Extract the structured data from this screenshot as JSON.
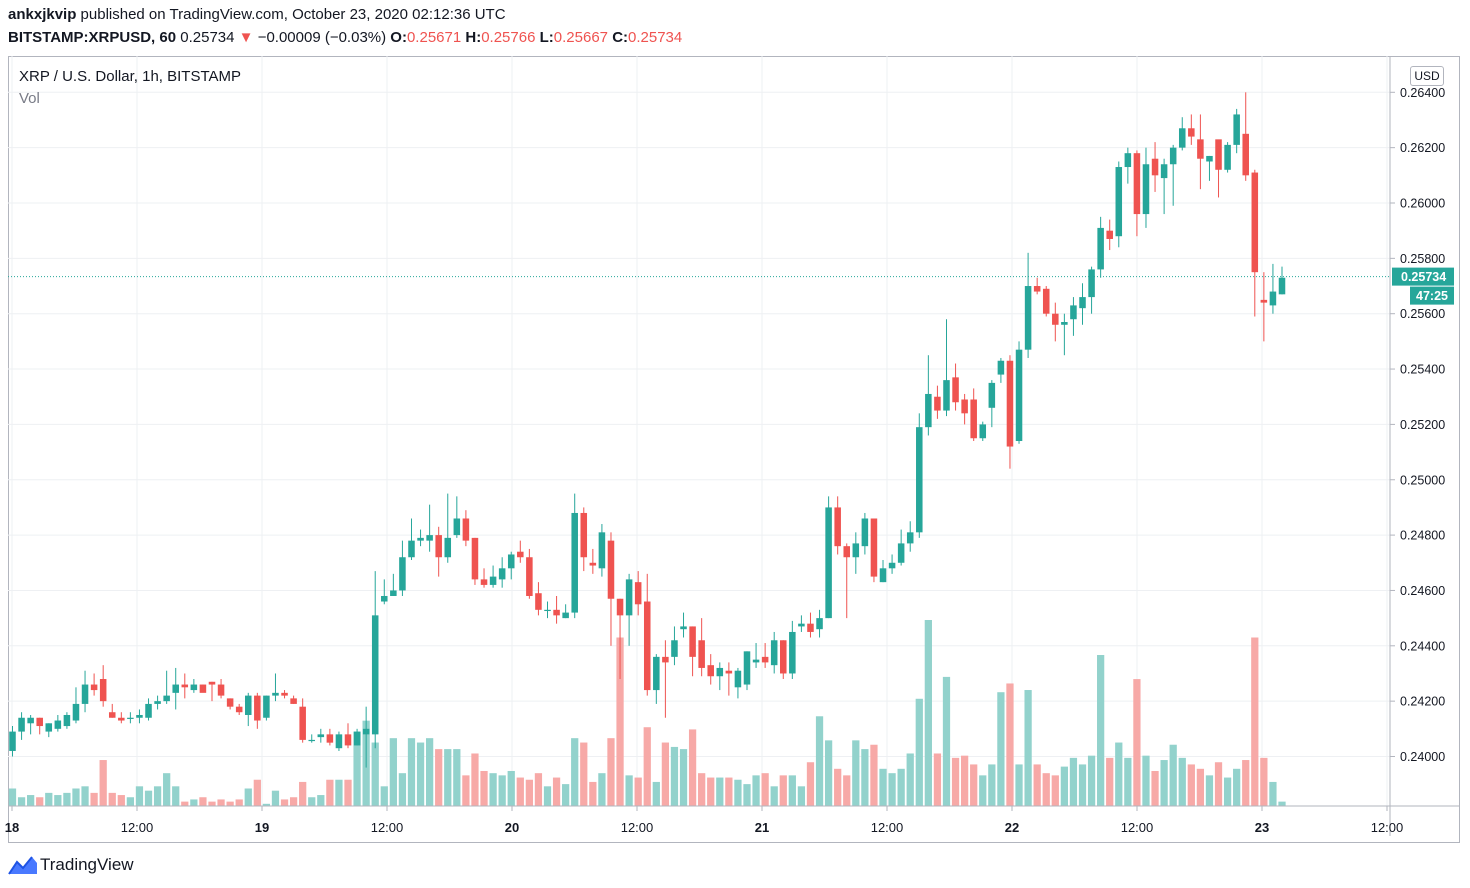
{
  "header": {
    "publisher": "ankxjkvip",
    "published_text": "published on TradingView.com, October 23, 2020 02:12:36 UTC",
    "symbol": "BITSTAMP:XRPUSD, 60",
    "price": "0.25734",
    "change": "−0.00009 (−0.03%)",
    "o_label": "O:",
    "o_value": "0.25671",
    "h_label": "H:",
    "h_value": "0.25766",
    "l_label": "L:",
    "l_value": "0.25667",
    "c_label": "C:",
    "c_value": "0.25734"
  },
  "legend": {
    "series_title": "XRP / U.S. Dollar, 1h, BITSTAMP",
    "volume_label": "Vol"
  },
  "currency_button": "USD",
  "last_price_label": "0.25734",
  "countdown_label": "47:25",
  "footer": {
    "brand": "TradingView"
  },
  "colors": {
    "up": "#26a69a",
    "down": "#ef5350",
    "vol_up": "#92d2cc",
    "vol_down": "#f7a9a7",
    "grid": "#eef0f3"
  },
  "chart_data": {
    "type": "candlestick",
    "title": "XRP / U.S. Dollar, 1h, BITSTAMP",
    "ylim": [
      0.2383,
      0.2646
    ],
    "y_ticks": [
      "0.24000",
      "0.24200",
      "0.24400",
      "0.24600",
      "0.24800",
      "0.25000",
      "0.25200",
      "0.25400",
      "0.25600",
      "0.25800",
      "0.26000",
      "0.26200",
      "0.26400"
    ],
    "x_ticks": [
      "18",
      "12:00",
      "19",
      "12:00",
      "20",
      "12:00",
      "21",
      "12:00",
      "22",
      "12:00",
      "23",
      "12:00"
    ],
    "last_price": 0.25734,
    "candles": [
      {
        "o": 0.2402,
        "h": 0.2411,
        "l": 0.24,
        "c": 0.2409,
        "v": 0.8
      },
      {
        "o": 0.2409,
        "h": 0.2416,
        "l": 0.2406,
        "c": 0.2414,
        "v": 0.4
      },
      {
        "o": 0.2412,
        "h": 0.2415,
        "l": 0.2408,
        "c": 0.2414,
        "v": 0.5
      },
      {
        "o": 0.2414,
        "h": 0.2414,
        "l": 0.2408,
        "c": 0.2411,
        "v": 0.4
      },
      {
        "o": 0.2409,
        "h": 0.2412,
        "l": 0.2407,
        "c": 0.2412,
        "v": 0.6
      },
      {
        "o": 0.241,
        "h": 0.2415,
        "l": 0.2409,
        "c": 0.2413,
        "v": 0.5
      },
      {
        "o": 0.2411,
        "h": 0.2416,
        "l": 0.241,
        "c": 0.2415,
        "v": 0.6
      },
      {
        "o": 0.2413,
        "h": 0.2425,
        "l": 0.2412,
        "c": 0.2419,
        "v": 0.8
      },
      {
        "o": 0.2419,
        "h": 0.2431,
        "l": 0.2416,
        "c": 0.2426,
        "v": 0.9
      },
      {
        "o": 0.2426,
        "h": 0.243,
        "l": 0.2422,
        "c": 0.2424,
        "v": 0.6
      },
      {
        "o": 0.2428,
        "h": 0.2433,
        "l": 0.2418,
        "c": 0.242,
        "v": 2.1
      },
      {
        "o": 0.2416,
        "h": 0.2419,
        "l": 0.2414,
        "c": 0.2414,
        "v": 0.6
      },
      {
        "o": 0.2414,
        "h": 0.2416,
        "l": 0.2412,
        "c": 0.2413,
        "v": 0.5
      },
      {
        "o": 0.2414,
        "h": 0.2416,
        "l": 0.2412,
        "c": 0.2414,
        "v": 0.4
      },
      {
        "o": 0.2414,
        "h": 0.2417,
        "l": 0.2412,
        "c": 0.2415,
        "v": 0.9
      },
      {
        "o": 0.2414,
        "h": 0.2421,
        "l": 0.2413,
        "c": 0.2419,
        "v": 0.7
      },
      {
        "o": 0.2419,
        "h": 0.2422,
        "l": 0.2417,
        "c": 0.242,
        "v": 0.9
      },
      {
        "o": 0.242,
        "h": 0.2431,
        "l": 0.2419,
        "c": 0.2422,
        "v": 1.5
      },
      {
        "o": 0.2423,
        "h": 0.2432,
        "l": 0.2417,
        "c": 0.2426,
        "v": 0.9
      },
      {
        "o": 0.2426,
        "h": 0.243,
        "l": 0.2421,
        "c": 0.2425,
        "v": 0.2
      },
      {
        "o": 0.2424,
        "h": 0.2428,
        "l": 0.2423,
        "c": 0.2426,
        "v": 0.3
      },
      {
        "o": 0.2426,
        "h": 0.2426,
        "l": 0.2424,
        "c": 0.2423,
        "v": 0.4
      },
      {
        "o": 0.2427,
        "h": 0.2427,
        "l": 0.242,
        "c": 0.2426,
        "v": 0.2
      },
      {
        "o": 0.2426,
        "h": 0.2428,
        "l": 0.2421,
        "c": 0.2422,
        "v": 0.3
      },
      {
        "o": 0.2421,
        "h": 0.2421,
        "l": 0.2417,
        "c": 0.2418,
        "v": 0.2
      },
      {
        "o": 0.2418,
        "h": 0.2419,
        "l": 0.2415,
        "c": 0.2416,
        "v": 0.3
      },
      {
        "o": 0.2415,
        "h": 0.2423,
        "l": 0.2411,
        "c": 0.2422,
        "v": 0.8
      },
      {
        "o": 0.2422,
        "h": 0.2423,
        "l": 0.241,
        "c": 0.2413,
        "v": 1.2
      },
      {
        "o": 0.2414,
        "h": 0.2422,
        "l": 0.2413,
        "c": 0.2422,
        "v": 0.1
      },
      {
        "o": 0.2422,
        "h": 0.243,
        "l": 0.242,
        "c": 0.2423,
        "v": 0.7
      },
      {
        "o": 0.2423,
        "h": 0.2424,
        "l": 0.2421,
        "c": 0.2422,
        "v": 0.3
      },
      {
        "o": 0.2421,
        "h": 0.2422,
        "l": 0.2419,
        "c": 0.2419,
        "v": 0.4
      },
      {
        "o": 0.2418,
        "h": 0.2421,
        "l": 0.2405,
        "c": 0.2406,
        "v": 1.1
      },
      {
        "o": 0.2406,
        "h": 0.2408,
        "l": 0.2405,
        "c": 0.2406,
        "v": 0.4
      },
      {
        "o": 0.2407,
        "h": 0.241,
        "l": 0.2405,
        "c": 0.2408,
        "v": 0.5
      },
      {
        "o": 0.2408,
        "h": 0.241,
        "l": 0.2404,
        "c": 0.2405,
        "v": 1.2
      },
      {
        "o": 0.2403,
        "h": 0.2409,
        "l": 0.2402,
        "c": 0.2408,
        "v": 1.2
      },
      {
        "o": 0.2408,
        "h": 0.2412,
        "l": 0.2403,
        "c": 0.2404,
        "v": 1.2
      },
      {
        "o": 0.2404,
        "h": 0.241,
        "l": 0.2404,
        "c": 0.2409,
        "v": 3.4
      },
      {
        "o": 0.2408,
        "h": 0.2418,
        "l": 0.2396,
        "c": 0.241,
        "v": 3.9
      },
      {
        "o": 0.2408,
        "h": 0.2467,
        "l": 0.2403,
        "c": 0.2451,
        "v": 2.9
      },
      {
        "o": 0.2456,
        "h": 0.2464,
        "l": 0.2455,
        "c": 0.2458,
        "v": 0.9
      },
      {
        "o": 0.2458,
        "h": 0.2466,
        "l": 0.2458,
        "c": 0.246,
        "v": 3.1
      },
      {
        "o": 0.246,
        "h": 0.2478,
        "l": 0.2458,
        "c": 0.2472,
        "v": 1.5
      },
      {
        "o": 0.2472,
        "h": 0.2486,
        "l": 0.2471,
        "c": 0.2478,
        "v": 3.1
      },
      {
        "o": 0.2478,
        "h": 0.2482,
        "l": 0.2476,
        "c": 0.2479,
        "v": 2.9
      },
      {
        "o": 0.2478,
        "h": 0.2491,
        "l": 0.2474,
        "c": 0.248,
        "v": 3.1
      },
      {
        "o": 0.248,
        "h": 0.2483,
        "l": 0.2465,
        "c": 0.2472,
        "v": 2.6
      },
      {
        "o": 0.2472,
        "h": 0.2495,
        "l": 0.247,
        "c": 0.2479,
        "v": 2.6
      },
      {
        "o": 0.248,
        "h": 0.2494,
        "l": 0.2479,
        "c": 0.2486,
        "v": 2.6
      },
      {
        "o": 0.2486,
        "h": 0.2489,
        "l": 0.2476,
        "c": 0.2478,
        "v": 1.4
      },
      {
        "o": 0.2479,
        "h": 0.2479,
        "l": 0.2462,
        "c": 0.2464,
        "v": 2.4
      },
      {
        "o": 0.2464,
        "h": 0.2468,
        "l": 0.2461,
        "c": 0.2462,
        "v": 1.6
      },
      {
        "o": 0.2462,
        "h": 0.2469,
        "l": 0.2461,
        "c": 0.2465,
        "v": 1.5
      },
      {
        "o": 0.2464,
        "h": 0.2472,
        "l": 0.2461,
        "c": 0.2468,
        "v": 1.4
      },
      {
        "o": 0.2468,
        "h": 0.2474,
        "l": 0.2464,
        "c": 0.2473,
        "v": 1.6
      },
      {
        "o": 0.2474,
        "h": 0.2478,
        "l": 0.247,
        "c": 0.2472,
        "v": 1.3
      },
      {
        "o": 0.2472,
        "h": 0.2475,
        "l": 0.2457,
        "c": 0.2458,
        "v": 1.2
      },
      {
        "o": 0.2459,
        "h": 0.2463,
        "l": 0.2451,
        "c": 0.2453,
        "v": 1.5
      },
      {
        "o": 0.2453,
        "h": 0.2456,
        "l": 0.245,
        "c": 0.2453,
        "v": 0.9
      },
      {
        "o": 0.2453,
        "h": 0.2458,
        "l": 0.2448,
        "c": 0.2451,
        "v": 1.3
      },
      {
        "o": 0.245,
        "h": 0.2455,
        "l": 0.245,
        "c": 0.2452,
        "v": 1.0
      },
      {
        "o": 0.2452,
        "h": 0.2495,
        "l": 0.245,
        "c": 0.2488,
        "v": 3.1
      },
      {
        "o": 0.2488,
        "h": 0.249,
        "l": 0.2467,
        "c": 0.2472,
        "v": 2.9
      },
      {
        "o": 0.247,
        "h": 0.2475,
        "l": 0.2466,
        "c": 0.2469,
        "v": 1.1
      },
      {
        "o": 0.2468,
        "h": 0.2484,
        "l": 0.2465,
        "c": 0.2481,
        "v": 1.5
      },
      {
        "o": 0.2478,
        "h": 0.2481,
        "l": 0.244,
        "c": 0.2457,
        "v": 3.1
      },
      {
        "o": 0.2457,
        "h": 0.2457,
        "l": 0.2428,
        "c": 0.2451,
        "v": 7.7
      },
      {
        "o": 0.2451,
        "h": 0.2466,
        "l": 0.244,
        "c": 0.2464,
        "v": 1.4
      },
      {
        "o": 0.2463,
        "h": 0.2467,
        "l": 0.2451,
        "c": 0.2455,
        "v": 1.3
      },
      {
        "o": 0.2456,
        "h": 0.2466,
        "l": 0.2422,
        "c": 0.2424,
        "v": 3.6
      },
      {
        "o": 0.2424,
        "h": 0.2437,
        "l": 0.2419,
        "c": 0.2436,
        "v": 1.1
      },
      {
        "o": 0.2436,
        "h": 0.2442,
        "l": 0.2414,
        "c": 0.2434,
        "v": 2.9
      },
      {
        "o": 0.2436,
        "h": 0.2447,
        "l": 0.2433,
        "c": 0.2442,
        "v": 2.7
      },
      {
        "o": 0.2446,
        "h": 0.2452,
        "l": 0.2443,
        "c": 0.2447,
        "v": 2.6
      },
      {
        "o": 0.2447,
        "h": 0.2447,
        "l": 0.2429,
        "c": 0.2436,
        "v": 3.5
      },
      {
        "o": 0.2442,
        "h": 0.245,
        "l": 0.2429,
        "c": 0.2432,
        "v": 1.5
      },
      {
        "o": 0.2433,
        "h": 0.2437,
        "l": 0.2426,
        "c": 0.2429,
        "v": 1.3
      },
      {
        "o": 0.2429,
        "h": 0.2434,
        "l": 0.2424,
        "c": 0.2432,
        "v": 1.3
      },
      {
        "o": 0.2431,
        "h": 0.2434,
        "l": 0.2422,
        "c": 0.243,
        "v": 1.3
      },
      {
        "o": 0.2425,
        "h": 0.2432,
        "l": 0.2421,
        "c": 0.2431,
        "v": 1.2
      },
      {
        "o": 0.2426,
        "h": 0.2438,
        "l": 0.2424,
        "c": 0.2438,
        "v": 1.0
      },
      {
        "o": 0.2434,
        "h": 0.2441,
        "l": 0.2432,
        "c": 0.2435,
        "v": 1.4
      },
      {
        "o": 0.2436,
        "h": 0.2441,
        "l": 0.2432,
        "c": 0.2434,
        "v": 1.5
      },
      {
        "o": 0.2433,
        "h": 0.2445,
        "l": 0.243,
        "c": 0.2442,
        "v": 0.9
      },
      {
        "o": 0.2442,
        "h": 0.2442,
        "l": 0.2428,
        "c": 0.243,
        "v": 1.4
      },
      {
        "o": 0.243,
        "h": 0.2449,
        "l": 0.2428,
        "c": 0.2445,
        "v": 1.4
      },
      {
        "o": 0.2447,
        "h": 0.2451,
        "l": 0.2445,
        "c": 0.2448,
        "v": 0.9
      },
      {
        "o": 0.2448,
        "h": 0.2452,
        "l": 0.2443,
        "c": 0.2445,
        "v": 2.0
      },
      {
        "o": 0.2446,
        "h": 0.2453,
        "l": 0.2443,
        "c": 0.245,
        "v": 4.1
      },
      {
        "o": 0.245,
        "h": 0.2494,
        "l": 0.245,
        "c": 0.249,
        "v": 3.0
      },
      {
        "o": 0.249,
        "h": 0.2494,
        "l": 0.2473,
        "c": 0.2476,
        "v": 1.7
      },
      {
        "o": 0.2476,
        "h": 0.2477,
        "l": 0.245,
        "c": 0.2472,
        "v": 1.4
      },
      {
        "o": 0.2472,
        "h": 0.2481,
        "l": 0.2466,
        "c": 0.2477,
        "v": 3.0
      },
      {
        "o": 0.2476,
        "h": 0.2488,
        "l": 0.2473,
        "c": 0.2486,
        "v": 2.6
      },
      {
        "o": 0.2486,
        "h": 0.2486,
        "l": 0.2463,
        "c": 0.2465,
        "v": 2.8
      },
      {
        "o": 0.2463,
        "h": 0.2471,
        "l": 0.2463,
        "c": 0.2468,
        "v": 1.7
      },
      {
        "o": 0.2468,
        "h": 0.2473,
        "l": 0.2466,
        "c": 0.247,
        "v": 1.5
      },
      {
        "o": 0.247,
        "h": 0.2482,
        "l": 0.2469,
        "c": 0.2477,
        "v": 1.7
      },
      {
        "o": 0.2477,
        "h": 0.2485,
        "l": 0.2474,
        "c": 0.2481,
        "v": 2.4
      },
      {
        "o": 0.2481,
        "h": 0.2524,
        "l": 0.2479,
        "c": 0.2519,
        "v": 4.9
      },
      {
        "o": 0.2519,
        "h": 0.2545,
        "l": 0.2516,
        "c": 0.2531,
        "v": 8.5
      },
      {
        "o": 0.253,
        "h": 0.2534,
        "l": 0.2522,
        "c": 0.2525,
        "v": 2.4
      },
      {
        "o": 0.2525,
        "h": 0.2558,
        "l": 0.2523,
        "c": 0.2536,
        "v": 5.9
      },
      {
        "o": 0.2537,
        "h": 0.2542,
        "l": 0.2525,
        "c": 0.2528,
        "v": 2.2
      },
      {
        "o": 0.2529,
        "h": 0.2531,
        "l": 0.252,
        "c": 0.2524,
        "v": 2.3
      },
      {
        "o": 0.2529,
        "h": 0.2533,
        "l": 0.2514,
        "c": 0.2515,
        "v": 1.9
      },
      {
        "o": 0.2515,
        "h": 0.2521,
        "l": 0.2514,
        "c": 0.252,
        "v": 1.4
      },
      {
        "o": 0.2526,
        "h": 0.2536,
        "l": 0.2519,
        "c": 0.2535,
        "v": 1.9
      },
      {
        "o": 0.2538,
        "h": 0.2544,
        "l": 0.2535,
        "c": 0.2543,
        "v": 5.2
      },
      {
        "o": 0.2543,
        "h": 0.2545,
        "l": 0.2504,
        "c": 0.2512,
        "v": 5.6
      },
      {
        "o": 0.2514,
        "h": 0.255,
        "l": 0.2513,
        "c": 0.2547,
        "v": 1.9
      },
      {
        "o": 0.2547,
        "h": 0.2582,
        "l": 0.2544,
        "c": 0.257,
        "v": 5.3
      },
      {
        "o": 0.257,
        "h": 0.2573,
        "l": 0.2567,
        "c": 0.2568,
        "v": 1.9
      },
      {
        "o": 0.2569,
        "h": 0.257,
        "l": 0.2559,
        "c": 0.256,
        "v": 1.5
      },
      {
        "o": 0.256,
        "h": 0.2564,
        "l": 0.255,
        "c": 0.2556,
        "v": 1.4
      },
      {
        "o": 0.2556,
        "h": 0.256,
        "l": 0.2545,
        "c": 0.2557,
        "v": 1.8
      },
      {
        "o": 0.2558,
        "h": 0.2566,
        "l": 0.2552,
        "c": 0.2563,
        "v": 2.2
      },
      {
        "o": 0.2562,
        "h": 0.2571,
        "l": 0.2556,
        "c": 0.2566,
        "v": 1.9
      },
      {
        "o": 0.2566,
        "h": 0.2577,
        "l": 0.256,
        "c": 0.2576,
        "v": 2.3
      },
      {
        "o": 0.2576,
        "h": 0.2595,
        "l": 0.2573,
        "c": 0.2591,
        "v": 6.9
      },
      {
        "o": 0.259,
        "h": 0.2594,
        "l": 0.2583,
        "c": 0.2587,
        "v": 2.2
      },
      {
        "o": 0.2588,
        "h": 0.2615,
        "l": 0.2584,
        "c": 0.2613,
        "v": 2.9
      },
      {
        "o": 0.2613,
        "h": 0.262,
        "l": 0.2607,
        "c": 0.2618,
        "v": 2.2
      },
      {
        "o": 0.2618,
        "h": 0.2619,
        "l": 0.2588,
        "c": 0.2596,
        "v": 5.8
      },
      {
        "o": 0.2596,
        "h": 0.262,
        "l": 0.2591,
        "c": 0.2614,
        "v": 2.3
      },
      {
        "o": 0.2616,
        "h": 0.2622,
        "l": 0.2604,
        "c": 0.261,
        "v": 1.6
      },
      {
        "o": 0.2609,
        "h": 0.2616,
        "l": 0.2596,
        "c": 0.2614,
        "v": 2.1
      },
      {
        "o": 0.2614,
        "h": 0.2621,
        "l": 0.2599,
        "c": 0.262,
        "v": 2.8
      },
      {
        "o": 0.262,
        "h": 0.2631,
        "l": 0.2619,
        "c": 0.2627,
        "v": 2.2
      },
      {
        "o": 0.2627,
        "h": 0.2632,
        "l": 0.2621,
        "c": 0.2624,
        "v": 1.9
      },
      {
        "o": 0.2623,
        "h": 0.2632,
        "l": 0.2605,
        "c": 0.2616,
        "v": 1.7
      },
      {
        "o": 0.2615,
        "h": 0.2617,
        "l": 0.2608,
        "c": 0.2617,
        "v": 1.4
      },
      {
        "o": 0.2623,
        "h": 0.2621,
        "l": 0.2602,
        "c": 0.2612,
        "v": 2.0
      },
      {
        "o": 0.2612,
        "h": 0.2622,
        "l": 0.2611,
        "c": 0.2621,
        "v": 1.3
      },
      {
        "o": 0.2621,
        "h": 0.2634,
        "l": 0.2618,
        "c": 0.2632,
        "v": 1.7
      },
      {
        "o": 0.2625,
        "h": 0.264,
        "l": 0.2608,
        "c": 0.261,
        "v": 2.1
      },
      {
        "o": 0.2611,
        "h": 0.2612,
        "l": 0.2559,
        "c": 0.2575,
        "v": 7.7
      },
      {
        "o": 0.2565,
        "h": 0.2575,
        "l": 0.255,
        "c": 0.2564,
        "v": 2.2
      },
      {
        "o": 0.2563,
        "h": 0.2578,
        "l": 0.256,
        "c": 0.2568,
        "v": 1.1
      },
      {
        "o": 0.2567,
        "h": 0.2577,
        "l": 0.2567,
        "c": 0.2573,
        "v": 0.2
      }
    ]
  }
}
